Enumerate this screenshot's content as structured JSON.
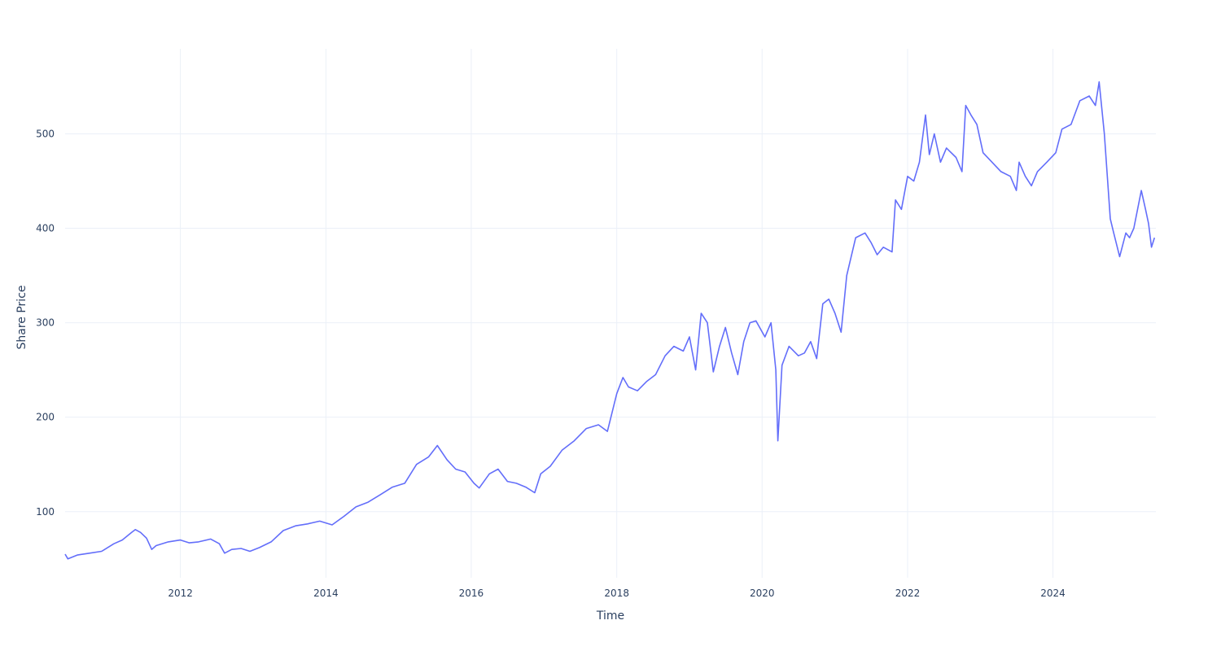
{
  "chart_data": {
    "type": "line",
    "title": "",
    "xlabel": "Time",
    "ylabel": "Share Price",
    "xlim": [
      "2010-06-01",
      "2025-06-01"
    ],
    "ylim": [
      30,
      590
    ],
    "x_ticks": [
      "2012",
      "2014",
      "2016",
      "2018",
      "2020",
      "2022",
      "2024"
    ],
    "y_ticks": [
      100,
      200,
      300,
      400,
      500
    ],
    "grid": true,
    "legend": "none",
    "line_color": "#636efa",
    "series": [
      {
        "x": [
          "2010-06-01",
          "2010-06-15",
          "2010-08-01",
          "2010-10-01",
          "2010-12-01",
          "2011-02-01",
          "2011-03-15",
          "2011-05-01",
          "2011-05-20",
          "2011-06-15",
          "2011-07-15",
          "2011-08-10",
          "2011-09-01",
          "2011-11-01",
          "2012-01-01",
          "2012-02-15",
          "2012-04-01",
          "2012-06-01",
          "2012-07-15",
          "2012-08-10",
          "2012-09-15",
          "2012-11-01",
          "2012-12-15",
          "2013-02-01",
          "2013-04-01",
          "2013-06-01",
          "2013-08-01",
          "2013-10-01",
          "2013-12-01",
          "2014-02-01",
          "2014-04-01",
          "2014-06-01",
          "2014-08-01",
          "2014-10-01",
          "2014-12-01",
          "2015-02-01",
          "2015-04-01",
          "2015-06-01",
          "2015-07-15",
          "2015-09-01",
          "2015-10-15",
          "2015-12-01",
          "2016-01-15",
          "2016-02-10",
          "2016-04-01",
          "2016-05-15",
          "2016-07-01",
          "2016-08-15",
          "2016-10-01",
          "2016-11-15",
          "2016-12-15",
          "2017-02-01",
          "2017-04-01",
          "2017-06-01",
          "2017-08-01",
          "2017-10-01",
          "2017-11-15",
          "2018-01-01",
          "2018-02-01",
          "2018-03-01",
          "2018-04-15",
          "2018-06-01",
          "2018-07-15",
          "2018-09-01",
          "2018-10-15",
          "2018-12-01",
          "2019-01-01",
          "2019-02-01",
          "2019-03-01",
          "2019-04-01",
          "2019-05-01",
          "2019-06-01",
          "2019-07-01",
          "2019-08-01",
          "2019-09-01",
          "2019-10-01",
          "2019-11-01",
          "2019-12-01",
          "2020-01-15",
          "2020-02-15",
          "2020-03-10",
          "2020-03-20",
          "2020-04-10",
          "2020-05-15",
          "2020-07-01",
          "2020-08-01",
          "2020-09-01",
          "2020-10-01",
          "2020-11-01",
          "2020-12-01",
          "2021-01-01",
          "2021-02-01",
          "2021-03-01",
          "2021-04-15",
          "2021-06-01",
          "2021-07-01",
          "2021-08-01",
          "2021-09-01",
          "2021-10-15",
          "2021-11-01",
          "2021-12-01",
          "2022-01-01",
          "2022-02-01",
          "2022-03-01",
          "2022-04-01",
          "2022-04-20",
          "2022-05-15",
          "2022-06-15",
          "2022-07-15",
          "2022-09-01",
          "2022-10-01",
          "2022-10-20",
          "2022-11-15",
          "2022-12-15",
          "2023-01-15",
          "2023-03-01",
          "2023-04-15",
          "2023-06-01",
          "2023-07-01",
          "2023-07-15",
          "2023-08-15",
          "2023-09-15",
          "2023-10-15",
          "2023-12-01",
          "2024-01-15",
          "2024-02-15",
          "2024-04-01",
          "2024-05-15",
          "2024-07-01",
          "2024-08-01",
          "2024-08-20",
          "2024-09-15",
          "2024-10-15",
          "2024-11-01",
          "2024-12-01",
          "2025-01-01",
          "2025-01-20",
          "2025-02-10",
          "2025-03-01",
          "2025-03-20",
          "2025-04-10",
          "2025-04-25",
          "2025-05-10",
          "2025-05-25"
        ],
        "y": [
          55,
          50,
          54,
          56,
          58,
          66,
          70,
          78,
          81,
          78,
          72,
          60,
          64,
          68,
          70,
          67,
          68,
          71,
          66,
          56,
          60,
          61,
          58,
          62,
          68,
          80,
          85,
          87,
          90,
          86,
          95,
          105,
          110,
          118,
          126,
          130,
          150,
          158,
          170,
          155,
          145,
          142,
          130,
          125,
          140,
          145,
          132,
          130,
          126,
          120,
          140,
          148,
          165,
          175,
          188,
          192,
          185,
          225,
          242,
          232,
          228,
          238,
          245,
          265,
          275,
          270,
          285,
          250,
          310,
          300,
          248,
          275,
          295,
          268,
          245,
          280,
          300,
          302,
          285,
          300,
          250,
          175,
          255,
          275,
          265,
          268,
          280,
          262,
          320,
          325,
          310,
          290,
          350,
          390,
          395,
          385,
          372,
          380,
          375,
          430,
          420,
          455,
          450,
          470,
          520,
          478,
          500,
          470,
          485,
          475,
          460,
          530,
          520,
          510,
          480,
          470,
          460,
          455,
          440,
          470,
          455,
          445,
          460,
          470,
          480,
          505,
          510,
          535,
          540,
          530,
          555,
          500,
          410,
          395,
          370,
          395,
          390,
          400,
          420,
          440,
          420,
          405,
          380,
          390
        ]
      }
    ]
  }
}
